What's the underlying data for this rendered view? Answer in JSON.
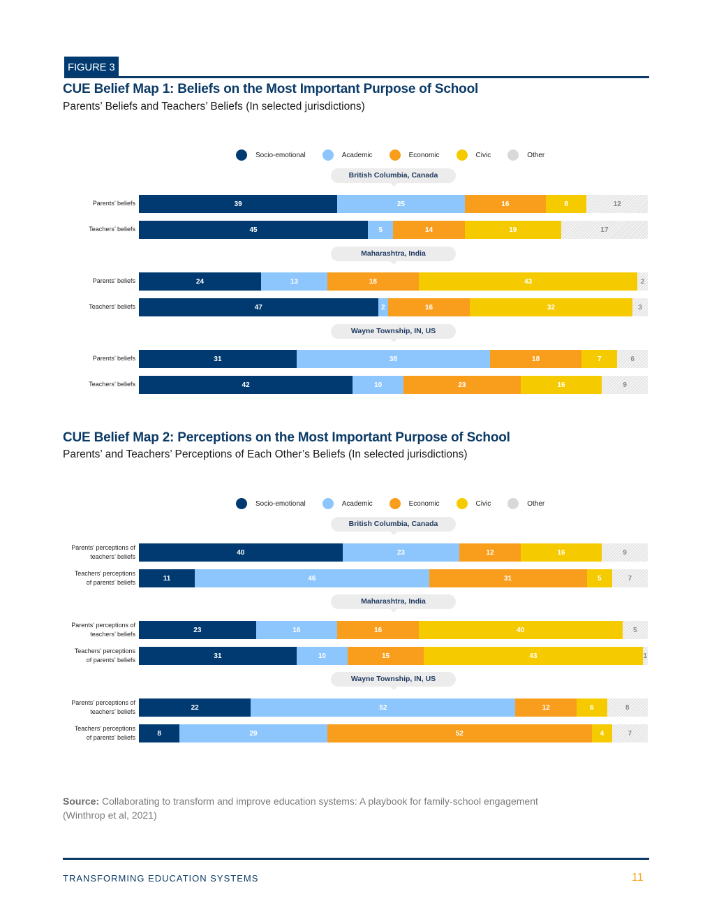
{
  "figure_tag": "FIGURE 3",
  "categories": [
    {
      "key": "socio",
      "label": "Socio-emotional",
      "color": "#003a70"
    },
    {
      "key": "academic",
      "label": "Academic",
      "color": "#8dc6fc"
    },
    {
      "key": "economic",
      "label": "Economic",
      "color": "#f99e1c"
    },
    {
      "key": "civic",
      "label": "Civic",
      "color": "#f5cb00"
    },
    {
      "key": "other",
      "label": "Other",
      "color": "#d9d9d9"
    }
  ],
  "chart_data": [
    {
      "type": "bar",
      "orientation": "horizontal-stacked-100",
      "title": "CUE Belief Map 1: Beliefs on the Most Important Purpose of School",
      "subtitle": "Parents’ Beliefs and Teachers’ Beliefs (In selected jurisdictions)",
      "legend": [
        "Socio-emotional",
        "Academic",
        "Economic",
        "Civic",
        "Other"
      ],
      "legend_position": "top-center",
      "unit": "percent",
      "groups": [
        {
          "name": "British Columbia, Canada",
          "rows": [
            {
              "label": "Parents’ beliefs",
              "values": [
                39,
                25,
                16,
                8,
                12
              ]
            },
            {
              "label": "Teachers’ beliefs",
              "values": [
                45,
                5,
                14,
                19,
                17
              ]
            }
          ]
        },
        {
          "name": "Maharashtra, India",
          "rows": [
            {
              "label": "Parents’ beliefs",
              "values": [
                24,
                13,
                18,
                43,
                2
              ]
            },
            {
              "label": "Teachers’ beliefs",
              "values": [
                47,
                2,
                16,
                32,
                3
              ]
            }
          ]
        },
        {
          "name": "Wayne Township, IN, US",
          "rows": [
            {
              "label": "Parents’ beliefs",
              "values": [
                31,
                38,
                18,
                7,
                6
              ]
            },
            {
              "label": "Teachers’ beliefs",
              "values": [
                42,
                10,
                23,
                16,
                9
              ]
            }
          ]
        }
      ]
    },
    {
      "type": "bar",
      "orientation": "horizontal-stacked-100",
      "title": "CUE Belief Map 2: Perceptions on the Most Important Purpose of School",
      "subtitle": "Parents’ and Teachers’ Perceptions of Each Other’s Beliefs (In selected jurisdictions)",
      "legend": [
        "Socio-emotional",
        "Academic",
        "Economic",
        "Civic",
        "Other"
      ],
      "legend_position": "top-center",
      "unit": "percent",
      "groups": [
        {
          "name": "British Columbia, Canada",
          "rows": [
            {
              "label": [
                "Parents’ perceptions of",
                "teachers’ beliefs"
              ],
              "values": [
                40,
                23,
                12,
                16,
                9
              ]
            },
            {
              "label": [
                "Teachers’ perceptions",
                "of parents’ beliefs"
              ],
              "values": [
                11,
                46,
                31,
                5,
                7
              ]
            }
          ]
        },
        {
          "name": "Maharashtra, India",
          "rows": [
            {
              "label": [
                "Parents’ perceptions of",
                "teachers’ beliefs"
              ],
              "values": [
                23,
                16,
                16,
                40,
                5
              ]
            },
            {
              "label": [
                "Teachers’ perceptions",
                "of parents’ beliefs"
              ],
              "values": [
                31,
                10,
                15,
                43,
                1
              ]
            }
          ]
        },
        {
          "name": "Wayne Township, IN, US",
          "rows": [
            {
              "label": [
                "Parents’ perceptions of",
                "teachers’ beliefs"
              ],
              "values": [
                22,
                52,
                12,
                6,
                8
              ]
            },
            {
              "label": [
                "Teachers’ perceptions",
                "of parents’ beliefs"
              ],
              "values": [
                8,
                29,
                52,
                4,
                7
              ]
            }
          ]
        }
      ]
    }
  ],
  "source": {
    "label": "Source:",
    "text": "Collaborating to transform and improve education systems: A playbook for family-school engagement",
    "text2": "(Winthrop et al, 2021)"
  },
  "footer": {
    "left": "TRANSFORMING EDUCATION SYSTEMS",
    "page_number": "11"
  }
}
